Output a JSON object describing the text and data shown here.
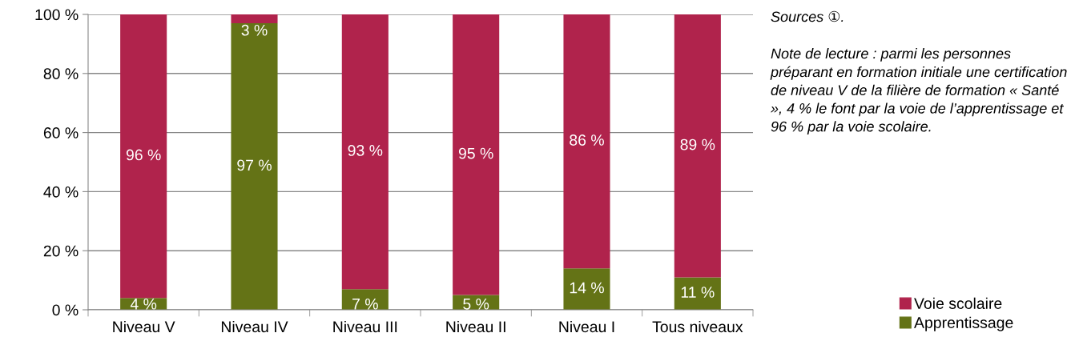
{
  "chart_data": {
    "type": "bar",
    "stacked": true,
    "categories": [
      "Niveau V",
      "Niveau IV",
      "Niveau III",
      "Niveau II",
      "Niveau I",
      "Tous niveaux"
    ],
    "series": [
      {
        "name": "Apprentissage",
        "color": "#647316",
        "values": [
          4,
          97,
          7,
          5,
          14,
          11
        ],
        "value_labels": [
          "4 %",
          "97 %",
          "7 %",
          "5 %",
          "14 %",
          "11 %"
        ]
      },
      {
        "name": "Voie scolaire",
        "color": "#b0234c",
        "values": [
          96,
          3,
          93,
          95,
          86,
          89
        ],
        "value_labels": [
          "96 %",
          "3 %",
          "93 %",
          "95 %",
          "86 %",
          "89 %"
        ]
      }
    ],
    "ylim": [
      0,
      100
    ],
    "yticks": [
      {
        "value": 0,
        "label": "0 %"
      },
      {
        "value": 20,
        "label": "20 %"
      },
      {
        "value": 40,
        "label": "40 %"
      },
      {
        "value": 60,
        "label": "60 %"
      },
      {
        "value": 80,
        "label": "80 %"
      },
      {
        "value": 100,
        "label": "100 %"
      }
    ],
    "grid": "y",
    "legend": "bottom right",
    "annotations": [
      "Sources ①.",
      "Note de lecture : parmi les personnes préparant en formation initiale une certification de niveau V de la filière de formation « Santé », 4 % le font par la voie de l’apprentissage et 96 % par la voie scolaire."
    ]
  }
}
